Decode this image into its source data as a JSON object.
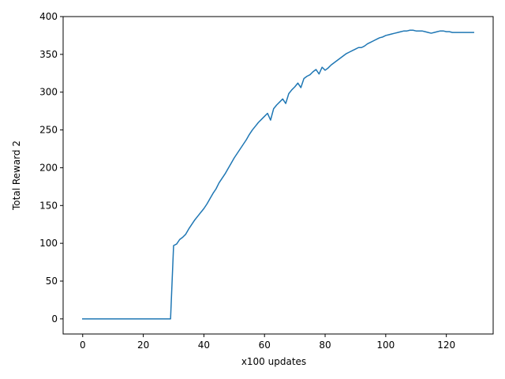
{
  "chart_data": {
    "type": "line",
    "xlabel": "x100 updates",
    "ylabel": "Total Reward 2",
    "xlim": [
      -6.45,
      135.45
    ],
    "ylim": [
      -20,
      400
    ],
    "xticks": [
      0,
      20,
      40,
      60,
      80,
      100,
      120
    ],
    "yticks": [
      0,
      50,
      100,
      150,
      200,
      250,
      300,
      350,
      400
    ],
    "xtick_labels": [
      "0",
      "20",
      "40",
      "60",
      "80",
      "100",
      "120"
    ],
    "ytick_labels": [
      "0",
      "50",
      "100",
      "150",
      "200",
      "250",
      "300",
      "350",
      "400"
    ],
    "grid": false,
    "series": [
      {
        "color": "#1f77b4",
        "x": [
          0,
          1,
          2,
          3,
          4,
          5,
          6,
          7,
          8,
          9,
          10,
          11,
          12,
          13,
          14,
          15,
          16,
          17,
          18,
          19,
          20,
          21,
          22,
          23,
          24,
          25,
          26,
          27,
          28,
          29,
          30,
          31,
          32,
          33,
          34,
          35,
          36,
          37,
          38,
          39,
          40,
          41,
          42,
          43,
          44,
          45,
          46,
          47,
          48,
          49,
          50,
          51,
          52,
          53,
          54,
          55,
          56,
          57,
          58,
          59,
          60,
          61,
          62,
          63,
          64,
          65,
          66,
          67,
          68,
          69,
          70,
          71,
          72,
          73,
          74,
          75,
          76,
          77,
          78,
          79,
          80,
          81,
          82,
          83,
          84,
          85,
          86,
          87,
          88,
          89,
          90,
          91,
          92,
          93,
          94,
          95,
          96,
          97,
          98,
          99,
          100,
          101,
          102,
          103,
          104,
          105,
          106,
          107,
          108,
          109,
          110,
          111,
          112,
          113,
          114,
          115,
          116,
          117,
          118,
          119,
          120,
          121,
          122,
          123,
          124,
          125,
          126,
          127,
          128,
          129
        ],
        "y": [
          0,
          0,
          0,
          0,
          0,
          0,
          0,
          0,
          0,
          0,
          0,
          0,
          0,
          0,
          0,
          0,
          0,
          0,
          0,
          0,
          0,
          0,
          0,
          0,
          0,
          0,
          0,
          0,
          0,
          0,
          97,
          99,
          105,
          108,
          112,
          119,
          125,
          131,
          136,
          141,
          146,
          152,
          159,
          166,
          172,
          180,
          186,
          192,
          199,
          206,
          213,
          219,
          225,
          231,
          237,
          244,
          250,
          255,
          260,
          264,
          268,
          272,
          263,
          278,
          283,
          287,
          291,
          285,
          298,
          303,
          307,
          312,
          306,
          318,
          321,
          323,
          327,
          330,
          324,
          333,
          329,
          332,
          336,
          339,
          342,
          345,
          348,
          351,
          353,
          355,
          357,
          359,
          359,
          361,
          364,
          366,
          368,
          370,
          372,
          373,
          375,
          376,
          377,
          378,
          379,
          380,
          381,
          381,
          382,
          382,
          381,
          381,
          381,
          380,
          379,
          378,
          379,
          380,
          381,
          381,
          380,
          380,
          379,
          379,
          379,
          379,
          379,
          379,
          379,
          379
        ]
      }
    ]
  }
}
